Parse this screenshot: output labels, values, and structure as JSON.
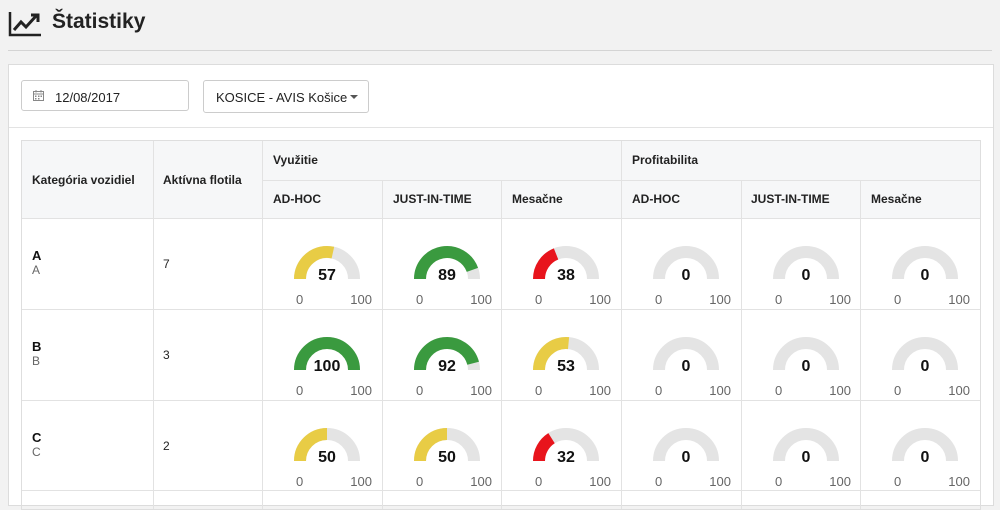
{
  "page": {
    "title": "Štatistiky",
    "icon": "line-chart-icon"
  },
  "filters": {
    "date": {
      "value": "12/08/2017",
      "icon": "calendar-icon"
    },
    "branch": {
      "value": "KOSICE - AVIS Košice",
      "icon": "caret-down-icon"
    }
  },
  "table": {
    "headers": {
      "category": "Kategória vozidiel",
      "fleet": "Aktívna flotila",
      "utilization": "Využitie",
      "profitability": "Profitabilita",
      "sub": [
        "AD-HOC",
        "JUST-IN-TIME",
        "Mesačne",
        "AD-HOC",
        "JUST-IN-TIME",
        "Mesačne"
      ]
    },
    "gauge_scale": {
      "min": "0",
      "max": "100"
    },
    "colors": {
      "green": "#3a9a3f",
      "yellow": "#e8cc45",
      "red": "#e8141c",
      "track": "#e4e4e4"
    },
    "rows": [
      {
        "code": "A",
        "sub": "A",
        "fleet": "7",
        "gauges": [
          {
            "value": 57,
            "color": "#e8cc45"
          },
          {
            "value": 89,
            "color": "#3a9a3f"
          },
          {
            "value": 38,
            "color": "#e8141c"
          },
          {
            "value": 0,
            "color": "#e4e4e4"
          },
          {
            "value": 0,
            "color": "#e4e4e4"
          },
          {
            "value": 0,
            "color": "#e4e4e4"
          }
        ]
      },
      {
        "code": "B",
        "sub": "B",
        "fleet": "3",
        "gauges": [
          {
            "value": 100,
            "color": "#3a9a3f"
          },
          {
            "value": 92,
            "color": "#3a9a3f"
          },
          {
            "value": 53,
            "color": "#e8cc45"
          },
          {
            "value": 0,
            "color": "#e4e4e4"
          },
          {
            "value": 0,
            "color": "#e4e4e4"
          },
          {
            "value": 0,
            "color": "#e4e4e4"
          }
        ]
      },
      {
        "code": "C",
        "sub": "C",
        "fleet": "2",
        "gauges": [
          {
            "value": 50,
            "color": "#e8cc45"
          },
          {
            "value": 50,
            "color": "#e8cc45"
          },
          {
            "value": 32,
            "color": "#e8141c"
          },
          {
            "value": 0,
            "color": "#e4e4e4"
          },
          {
            "value": 0,
            "color": "#e4e4e4"
          },
          {
            "value": 0,
            "color": "#e4e4e4"
          }
        ]
      }
    ]
  }
}
